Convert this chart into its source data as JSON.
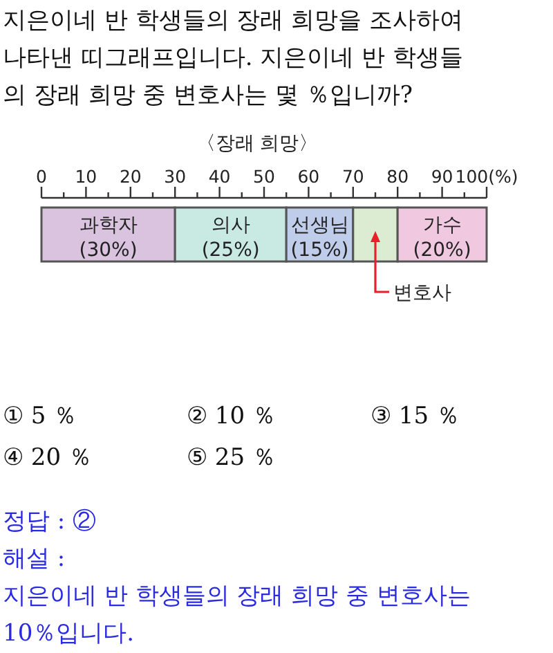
{
  "chart_data": {
    "type": "bar",
    "orientation": "horizontal",
    "stacked": true,
    "title": "〈장래 희망〉",
    "categories": [
      null
    ],
    "series": [
      {
        "name": "과학자",
        "color": "#d9c3de",
        "values": [
          30
        ],
        "value_labels": [
          "(30%)"
        ]
      },
      {
        "name": "의사",
        "color": "#c9eae3",
        "values": [
          25
        ],
        "value_labels": [
          "(25%)"
        ]
      },
      {
        "name": "선생님",
        "color": "#bfcdea",
        "values": [
          15
        ],
        "value_labels": [
          "(15%)"
        ]
      },
      {
        "name": "변호사",
        "color": "#dcecd2",
        "values": [
          10
        ],
        "value_labels": [
          null
        ]
      },
      {
        "name": "가수",
        "color": "#f0c9e1",
        "values": [
          20
        ],
        "value_labels": [
          "(20%)"
        ]
      }
    ],
    "xlim": [
      0,
      100
    ],
    "xticks": [
      0,
      {
        "value": 5,
        "label": null
      },
      10,
      {
        "value": 15,
        "label": null
      },
      20,
      {
        "value": 25,
        "label": null
      },
      30,
      {
        "value": 35,
        "label": null
      },
      40,
      {
        "value": 45,
        "label": null
      },
      50,
      {
        "value": 55,
        "label": null
      },
      60,
      {
        "value": 65,
        "label": null
      },
      70,
      {
        "value": 75,
        "label": null
      },
      80,
      {
        "value": 85,
        "label": null
      },
      90,
      {
        "value": 95,
        "label": null
      },
      {
        "value": 100,
        "label": "100(%)"
      }
    ],
    "annotations": [
      "지은이네 반 학생들의 장래 희망을 조사하여 나타낸 띠그래프입니다. 지은이네 반 학생들의 장래 희망 중 변호사는 몇 ％입니까?",
      "① 5 ％",
      "② 10 ％",
      "③ 15 ％",
      "④ 20 ％",
      "⑤ 25 ％",
      "정답 : ②",
      "해설 :",
      "지은이네 반 학생들의 장래 희망 중 변호사는 10％입니다."
    ]
  }
}
